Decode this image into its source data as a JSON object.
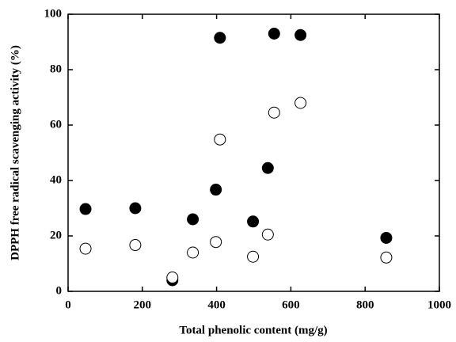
{
  "chart_data": {
    "type": "scatter",
    "xlabel": "Total phenolic content (mg/g)",
    "ylabel": "DPPH free radical scavenging activity (%)",
    "x": [
      47,
      181,
      281,
      336,
      398,
      409,
      498,
      538,
      555,
      626,
      857
    ],
    "series": [
      {
        "color": "#000000",
        "values": [
          29.7,
          30,
          4,
          26,
          36.7,
          91.5,
          25.2,
          44.5,
          93,
          92.5,
          19.3
        ]
      },
      {
        "color": "#ffffff",
        "values": [
          15.4,
          16.7,
          5,
          14,
          17.8,
          54.8,
          12.5,
          20.5,
          64.5,
          68,
          12.2
        ]
      }
    ],
    "xlim": [
      0,
      1000
    ],
    "xticks": [
      0,
      200,
      400,
      600,
      800,
      1000
    ],
    "ylim": [
      0,
      100
    ],
    "yticks": [
      0,
      20,
      40,
      60,
      80,
      100
    ]
  }
}
